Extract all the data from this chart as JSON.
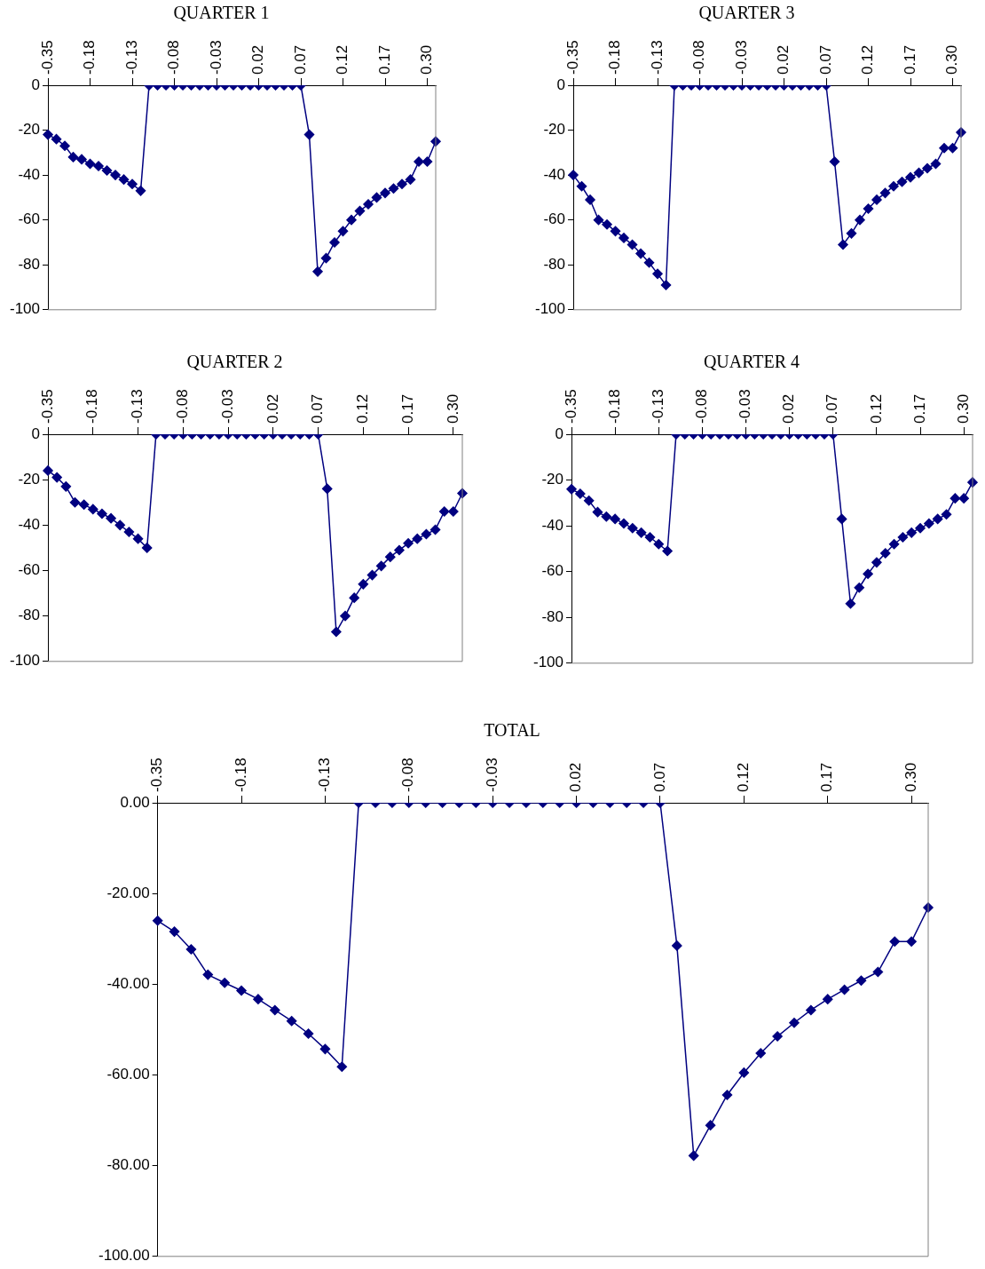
{
  "chart_data": [
    {
      "type": "line",
      "title": "QUARTER 1",
      "categories": [
        "-0.35",
        null,
        null,
        null,
        null,
        "-0.18",
        null,
        null,
        null,
        null,
        "-0.13",
        null,
        null,
        null,
        null,
        "-0.08",
        null,
        null,
        null,
        null,
        "-0.03",
        null,
        null,
        null,
        null,
        "0.02",
        null,
        null,
        null,
        null,
        "0.07",
        null,
        null,
        null,
        null,
        "0.12",
        null,
        null,
        null,
        null,
        "0.17",
        null,
        null,
        null,
        null,
        "0.30",
        null
      ],
      "values": [
        -22,
        -24,
        -27,
        -32,
        -33,
        -35,
        -36,
        -38,
        -40,
        -42,
        -44,
        -47,
        0,
        0,
        0,
        0,
        0,
        0,
        0,
        0,
        0,
        0,
        0,
        0,
        0,
        0,
        0,
        0,
        0,
        0,
        0,
        -22,
        -83,
        -77,
        -70,
        -65,
        -60,
        -56,
        -53,
        -50,
        -48,
        -46,
        -44,
        -42,
        -34,
        -34,
        -25
      ],
      "color": "#000080",
      "marker": "diamond",
      "ylim": [
        -100,
        0
      ],
      "yticks": [
        0,
        -20,
        -40,
        -60,
        -80,
        -100
      ]
    },
    {
      "type": "line",
      "title": "QUARTER 3",
      "categories": [
        "-0.35",
        null,
        null,
        null,
        null,
        "-0.18",
        null,
        null,
        null,
        null,
        "-0.13",
        null,
        null,
        null,
        null,
        "-0.08",
        null,
        null,
        null,
        null,
        "-0.03",
        null,
        null,
        null,
        null,
        "0.02",
        null,
        null,
        null,
        null,
        "0.07",
        null,
        null,
        null,
        null,
        "0.12",
        null,
        null,
        null,
        null,
        "0.17",
        null,
        null,
        null,
        null,
        "0.30",
        null
      ],
      "values": [
        -40,
        -45,
        -51,
        -60,
        -62,
        -65,
        -68,
        -71,
        -75,
        -79,
        -84,
        -89,
        0,
        0,
        0,
        0,
        0,
        0,
        0,
        0,
        0,
        0,
        0,
        0,
        0,
        0,
        0,
        0,
        0,
        0,
        0,
        -34,
        -71,
        -66,
        -60,
        -55,
        -51,
        -48,
        -45,
        -43,
        -41,
        -39,
        -37,
        -35,
        -28,
        -28,
        -21
      ],
      "color": "#000080",
      "marker": "diamond",
      "ylim": [
        -100,
        0
      ],
      "yticks": [
        0,
        -20,
        -40,
        -60,
        -80,
        -100
      ]
    },
    {
      "type": "line",
      "title": "QUARTER 2",
      "categories": [
        "-0.35",
        null,
        null,
        null,
        null,
        "-0.18",
        null,
        null,
        null,
        null,
        "-0.13",
        null,
        null,
        null,
        null,
        "-0.08",
        null,
        null,
        null,
        null,
        "-0.03",
        null,
        null,
        null,
        null,
        "0.02",
        null,
        null,
        null,
        null,
        "0.07",
        null,
        null,
        null,
        null,
        "0.12",
        null,
        null,
        null,
        null,
        "0.17",
        null,
        null,
        null,
        null,
        "0.30",
        null
      ],
      "values": [
        -16,
        -19,
        -23,
        -30,
        -31,
        -33,
        -35,
        -37,
        -40,
        -43,
        -46,
        -50,
        0,
        0,
        0,
        0,
        0,
        0,
        0,
        0,
        0,
        0,
        0,
        0,
        0,
        0,
        0,
        0,
        0,
        0,
        0,
        -24,
        -87,
        -80,
        -72,
        -66,
        -62,
        -58,
        -54,
        -51,
        -48,
        -46,
        -44,
        -42,
        -34,
        -34,
        -26
      ],
      "color": "#000080",
      "marker": "diamond",
      "ylim": [
        -100,
        0
      ],
      "yticks": [
        0,
        -20,
        -40,
        -60,
        -80,
        -100
      ]
    },
    {
      "type": "line",
      "title": "QUARTER 4",
      "categories": [
        "-0.35",
        null,
        null,
        null,
        null,
        "-0.18",
        null,
        null,
        null,
        null,
        "-0.13",
        null,
        null,
        null,
        null,
        "-0.08",
        null,
        null,
        null,
        null,
        "-0.03",
        null,
        null,
        null,
        null,
        "0.02",
        null,
        null,
        null,
        null,
        "0.07",
        null,
        null,
        null,
        null,
        "0.12",
        null,
        null,
        null,
        null,
        "0.17",
        null,
        null,
        null,
        null,
        "0.30",
        null
      ],
      "values": [
        -24,
        -26,
        -29,
        -34,
        -36,
        -37,
        -39,
        -41,
        -43,
        -45,
        -48,
        -51,
        0,
        0,
        0,
        0,
        0,
        0,
        0,
        0,
        0,
        0,
        0,
        0,
        0,
        0,
        0,
        0,
        0,
        0,
        0,
        -37,
        -74,
        -67,
        -61,
        -56,
        -52,
        -48,
        -45,
        -43,
        -41,
        -39,
        -37,
        -35,
        -28,
        -28,
        -21
      ],
      "color": "#000080",
      "marker": "diamond",
      "ylim": [
        -100,
        0
      ],
      "yticks": [
        0,
        -20,
        -40,
        -60,
        -80,
        -100
      ]
    },
    {
      "type": "line",
      "title": "TOTAL",
      "categories": [
        "-0.35",
        null,
        null,
        null,
        null,
        "-0.18",
        null,
        null,
        null,
        null,
        "-0.13",
        null,
        null,
        null,
        null,
        "-0.08",
        null,
        null,
        null,
        null,
        "-0.03",
        null,
        null,
        null,
        null,
        "0.02",
        null,
        null,
        null,
        null,
        "0.07",
        null,
        null,
        null,
        null,
        "0.12",
        null,
        null,
        null,
        null,
        "0.17",
        null,
        null,
        null,
        null,
        "0.30",
        null
      ],
      "values": [
        -26,
        -28.4,
        -32.3,
        -37.9,
        -39.7,
        -41.4,
        -43.3,
        -45.7,
        -48.1,
        -50.9,
        -54.3,
        -58.2,
        0,
        0,
        0,
        0,
        0,
        0,
        0,
        0,
        0,
        0,
        0,
        0,
        0,
        0,
        0,
        0,
        0,
        0,
        0,
        -31.5,
        -77.8,
        -71.1,
        -64.4,
        -59.5,
        -55.2,
        -51.5,
        -48.5,
        -45.7,
        -43.3,
        -41.2,
        -39.2,
        -37.3,
        -30.6,
        -30.6,
        -23.1
      ],
      "color": "#000080",
      "marker": "diamond",
      "ylim": [
        -100,
        0
      ],
      "yticks": [
        {
          "value": 0,
          "label": "0.00"
        },
        {
          "value": -20,
          "label": "-20.00"
        },
        {
          "value": -40,
          "label": "-40.00"
        },
        {
          "value": -60,
          "label": "-60.00"
        },
        {
          "value": -80,
          "label": "-80.00"
        },
        {
          "value": -100,
          "label": "-100.00"
        }
      ]
    }
  ]
}
